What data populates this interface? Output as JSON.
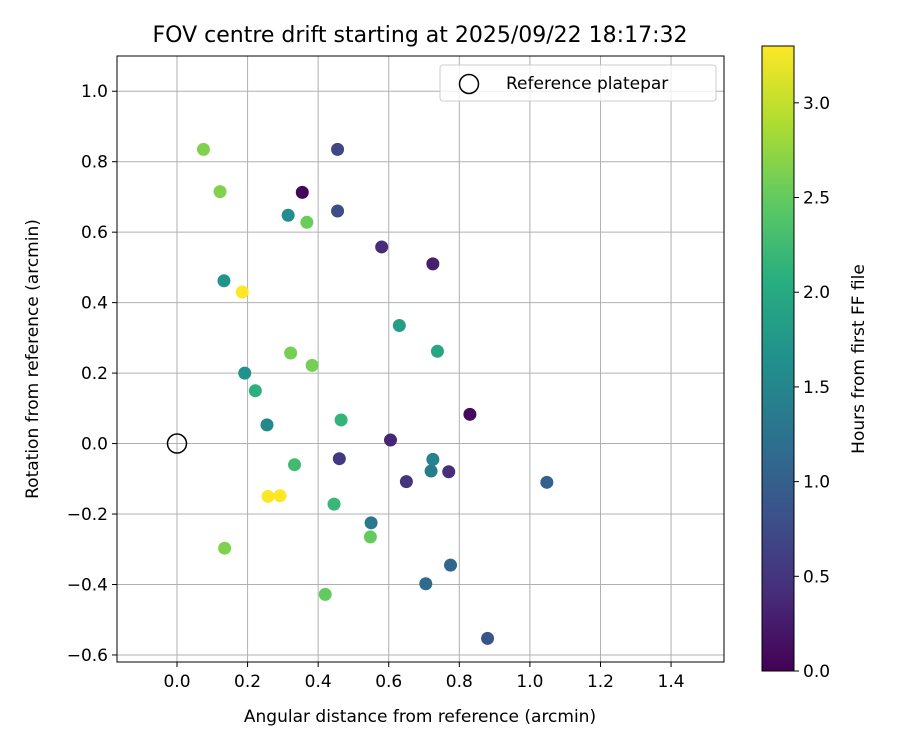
{
  "chart_data": {
    "type": "scatter",
    "title": "FOV centre drift starting at 2025/09/22 18:17:32",
    "xlabel": "Angular distance from reference (arcmin)",
    "ylabel": "Rotation from reference (arcmin)",
    "xlim": [
      -0.17,
      1.55
    ],
    "ylim": [
      -0.62,
      1.1
    ],
    "xticks": [
      0.0,
      0.2,
      0.4,
      0.6,
      0.8,
      1.0,
      1.2,
      1.4
    ],
    "xtick_labels": [
      "0.0",
      "0.2",
      "0.4",
      "0.6",
      "0.8",
      "1.0",
      "1.2",
      "1.4"
    ],
    "yticks": [
      -0.6,
      -0.4,
      -0.2,
      0.0,
      0.2,
      0.4,
      0.6,
      0.8,
      1.0
    ],
    "ytick_labels": [
      "−0.6",
      "−0.4",
      "−0.2",
      "0.0",
      "0.2",
      "0.4",
      "0.6",
      "0.8",
      "1.0"
    ],
    "grid": true,
    "legend": {
      "position": "top-right",
      "entries": [
        "Reference platepar"
      ]
    },
    "reference_point": {
      "x": 0.0,
      "y": 0.0,
      "label": "Reference platepar"
    },
    "colorbar": {
      "label": "Hours from first FF file",
      "colormap": "viridis",
      "range": [
        0.0,
        3.3
      ],
      "ticks": [
        0.0,
        0.5,
        1.0,
        1.5,
        2.0,
        2.5,
        3.0
      ],
      "tick_labels": [
        "0.0",
        "0.5",
        "1.0",
        "1.5",
        "2.0",
        "2.5",
        "3.0"
      ]
    },
    "points": [
      {
        "x": 0.355,
        "y": 0.713,
        "hours": 0.05
      },
      {
        "x": 0.83,
        "y": 0.083,
        "hours": 0.08
      },
      {
        "x": 0.725,
        "y": 0.51,
        "hours": 0.28
      },
      {
        "x": 0.605,
        "y": 0.01,
        "hours": 0.35
      },
      {
        "x": 0.58,
        "y": 0.558,
        "hours": 0.4
      },
      {
        "x": 0.77,
        "y": -0.08,
        "hours": 0.45
      },
      {
        "x": 0.65,
        "y": -0.108,
        "hours": 0.5
      },
      {
        "x": 0.46,
        "y": -0.043,
        "hours": 0.55
      },
      {
        "x": 0.455,
        "y": 0.835,
        "hours": 0.7
      },
      {
        "x": 0.455,
        "y": 0.66,
        "hours": 0.78
      },
      {
        "x": 0.88,
        "y": -0.553,
        "hours": 0.85
      },
      {
        "x": 1.048,
        "y": -0.11,
        "hours": 1.05
      },
      {
        "x": 0.775,
        "y": -0.345,
        "hours": 1.1
      },
      {
        "x": 0.705,
        "y": -0.398,
        "hours": 1.15
      },
      {
        "x": 0.55,
        "y": -0.225,
        "hours": 1.3
      },
      {
        "x": 0.72,
        "y": -0.078,
        "hours": 1.38
      },
      {
        "x": 0.725,
        "y": -0.045,
        "hours": 1.45
      },
      {
        "x": 0.255,
        "y": 0.053,
        "hours": 1.55
      },
      {
        "x": 0.315,
        "y": 0.648,
        "hours": 1.6
      },
      {
        "x": 0.192,
        "y": 0.2,
        "hours": 1.65
      },
      {
        "x": 0.133,
        "y": 0.462,
        "hours": 1.7
      },
      {
        "x": 0.63,
        "y": 0.335,
        "hours": 1.85
      },
      {
        "x": 0.738,
        "y": 0.262,
        "hours": 1.95
      },
      {
        "x": 0.222,
        "y": 0.15,
        "hours": 2.1
      },
      {
        "x": 0.465,
        "y": 0.067,
        "hours": 2.15
      },
      {
        "x": 0.445,
        "y": -0.172,
        "hours": 2.2
      },
      {
        "x": 0.333,
        "y": -0.06,
        "hours": 2.25
      },
      {
        "x": 0.548,
        "y": -0.265,
        "hours": 2.5
      },
      {
        "x": 0.42,
        "y": -0.428,
        "hours": 2.5
      },
      {
        "x": 0.368,
        "y": 0.628,
        "hours": 2.55
      },
      {
        "x": 0.322,
        "y": 0.257,
        "hours": 2.6
      },
      {
        "x": 0.383,
        "y": 0.222,
        "hours": 2.6
      },
      {
        "x": 0.075,
        "y": 0.835,
        "hours": 2.65
      },
      {
        "x": 0.122,
        "y": 0.715,
        "hours": 2.65
      },
      {
        "x": 0.135,
        "y": -0.297,
        "hours": 2.65
      },
      {
        "x": 0.185,
        "y": 0.43,
        "hours": 3.3
      },
      {
        "x": 0.258,
        "y": -0.15,
        "hours": 3.3
      },
      {
        "x": 0.292,
        "y": -0.148,
        "hours": 3.3
      }
    ]
  }
}
